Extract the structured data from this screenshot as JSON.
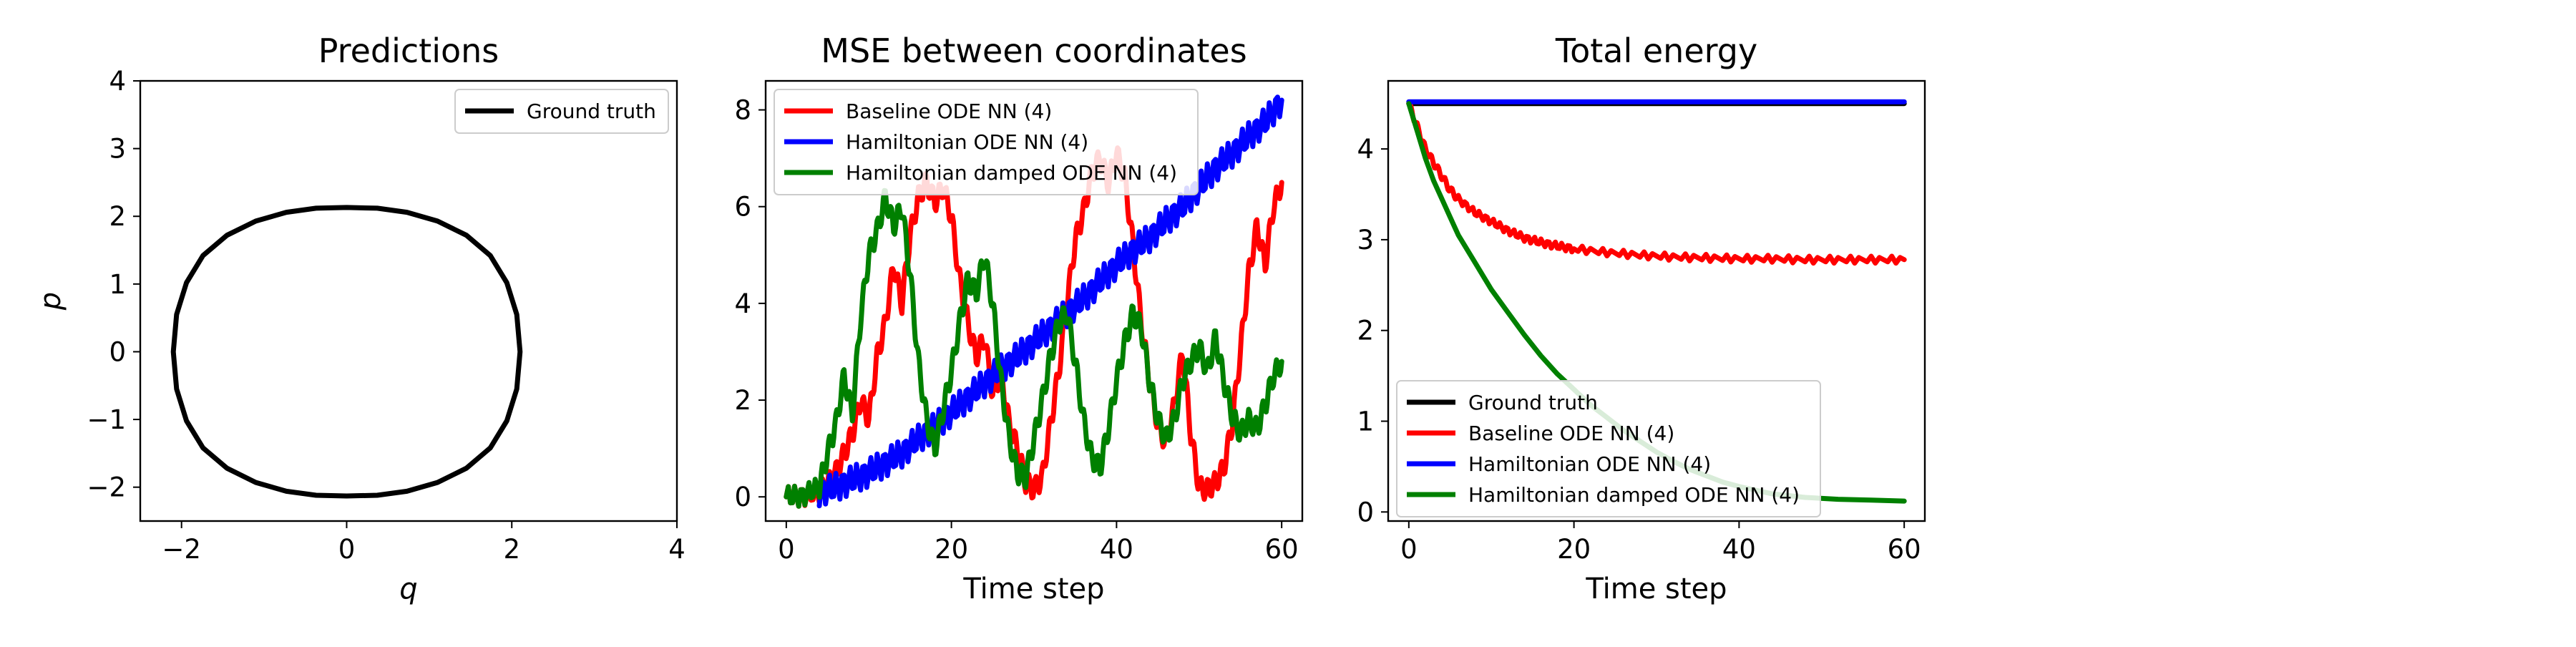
{
  "chart_data": [
    {
      "type": "line",
      "title": "Predictions",
      "xlabel": "q",
      "ylabel": "p",
      "xlim": [
        -2.5,
        4
      ],
      "ylim": [
        -2.5,
        4
      ],
      "xticks": [
        -2,
        0,
        2,
        4
      ],
      "yticks": [
        -2,
        -1,
        0,
        1,
        2,
        3,
        4
      ],
      "xtick_labels": [
        "−2",
        "0",
        "2",
        "4"
      ],
      "ytick_labels": [
        "−2",
        "−1",
        "0",
        "1",
        "2",
        "3",
        "4"
      ],
      "legend": "top-right",
      "grid": false,
      "series": [
        {
          "name": "Ground truth",
          "color": "#000000",
          "x": [
            2.1,
            2.06,
            1.94,
            1.74,
            1.45,
            1.1,
            0.73,
            0.37,
            0.0,
            -0.37,
            -0.73,
            -1.1,
            -1.45,
            -1.74,
            -1.94,
            -2.06,
            -2.1,
            -2.06,
            -1.94,
            -1.74,
            -1.45,
            -1.1,
            -0.73,
            -0.37,
            0.0,
            0.37,
            0.73,
            1.1,
            1.45,
            1.74,
            1.94,
            2.06,
            2.1
          ],
          "y": [
            0.0,
            0.55,
            1.02,
            1.42,
            1.72,
            1.93,
            2.06,
            2.12,
            2.13,
            2.12,
            2.06,
            1.93,
            1.72,
            1.42,
            1.02,
            0.55,
            0.0,
            -0.55,
            -1.02,
            -1.42,
            -1.72,
            -1.93,
            -2.06,
            -2.12,
            -2.13,
            -2.12,
            -2.06,
            -1.93,
            -1.72,
            -1.42,
            -1.02,
            -0.55,
            0.0
          ]
        }
      ]
    },
    {
      "type": "line",
      "title": "MSE between coordinates",
      "xlabel": "Time step",
      "ylabel": "",
      "xlim": [
        -2.5,
        62.5
      ],
      "ylim": [
        -0.5,
        8.6
      ],
      "xticks": [
        0,
        20,
        40,
        60
      ],
      "yticks": [
        0,
        2,
        4,
        6,
        8
      ],
      "xtick_labels": [
        "0",
        "20",
        "40",
        "60"
      ],
      "ytick_labels": [
        "0",
        "2",
        "4",
        "6",
        "8"
      ],
      "legend": "top-left",
      "grid": false,
      "series": [
        {
          "name": "Baseline ODE NN (4)",
          "color": "#ff0000",
          "x": [
            0,
            2,
            4,
            5,
            6,
            7,
            8,
            9,
            10,
            11,
            12,
            13,
            14,
            15,
            16,
            17,
            18,
            19,
            20,
            21,
            22,
            23,
            24,
            25,
            26,
            27,
            28,
            29,
            30,
            31,
            32,
            33,
            34,
            35,
            36,
            37,
            38,
            39,
            40,
            41,
            42,
            43,
            44,
            45,
            46,
            47,
            48,
            49,
            50,
            51,
            52,
            53,
            54,
            55,
            56,
            57,
            58,
            59,
            60
          ],
          "y": [
            0,
            0.02,
            0.1,
            0.25,
            0.5,
            0.9,
            1.3,
            2.0,
            1.6,
            2.9,
            3.6,
            4.8,
            4.0,
            5.4,
            6.2,
            6.5,
            6.1,
            6.4,
            5.8,
            4.5,
            3.6,
            2.9,
            3.3,
            2.1,
            2.6,
            1.5,
            1.0,
            0.3,
            0.15,
            0.4,
            1.5,
            2.6,
            4.0,
            5.3,
            5.9,
            6.7,
            7.0,
            6.5,
            7.1,
            6.6,
            5.2,
            3.6,
            2.4,
            1.5,
            1.1,
            1.9,
            3.0,
            1.3,
            0.2,
            0.15,
            0.3,
            0.6,
            1.5,
            3.0,
            4.6,
            5.6,
            4.8,
            6.0,
            6.5
          ]
        },
        {
          "name": "Hamiltonian ODE NN (4)",
          "color": "#0000ff",
          "x": [
            4,
            6,
            8,
            10,
            12,
            14,
            16,
            18,
            20,
            22,
            24,
            26,
            28,
            30,
            32,
            34,
            36,
            38,
            40,
            42,
            44,
            46,
            48,
            50,
            52,
            54,
            56,
            58,
            60
          ],
          "y": [
            0.1,
            0.2,
            0.35,
            0.5,
            0.7,
            0.9,
            1.2,
            1.45,
            1.75,
            2.05,
            2.35,
            2.65,
            2.9,
            3.2,
            3.5,
            3.8,
            4.1,
            4.45,
            4.8,
            5.1,
            5.35,
            5.7,
            6.0,
            6.4,
            6.8,
            7.1,
            7.45,
            7.75,
            8.2
          ]
        },
        {
          "name": "Hamiltonian damped ODE NN (4)",
          "color": "#008000",
          "x": [
            0,
            2,
            4,
            5,
            6,
            7,
            8,
            9,
            10,
            11,
            12,
            13,
            14,
            15,
            16,
            17,
            18,
            19,
            20,
            21,
            22,
            23,
            24,
            25,
            26,
            27,
            28,
            29,
            30,
            31,
            32,
            33,
            34,
            35,
            36,
            37,
            38,
            39,
            40,
            41,
            42,
            43,
            44,
            45,
            46,
            47,
            48,
            49,
            50,
            51,
            52,
            53,
            54,
            55,
            56,
            57,
            58,
            59,
            60
          ],
          "y": [
            0,
            0.02,
            0.2,
            0.9,
            1.5,
            2.5,
            1.7,
            3.7,
            5.0,
            5.5,
            6.2,
            5.6,
            6.0,
            4.6,
            2.8,
            1.6,
            1.0,
            1.8,
            2.6,
            3.6,
            4.5,
            4.2,
            5.0,
            4.0,
            2.4,
            1.2,
            0.5,
            0.4,
            1.2,
            2.0,
            2.9,
            3.6,
            3.8,
            2.8,
            1.6,
            0.8,
            0.6,
            1.4,
            2.4,
            3.2,
            3.8,
            3.5,
            2.4,
            1.6,
            1.2,
            1.6,
            2.4,
            2.8,
            3.1,
            2.6,
            3.3,
            2.4,
            1.7,
            1.3,
            1.6,
            1.4,
            1.9,
            2.5,
            2.8
          ]
        }
      ]
    },
    {
      "type": "line",
      "title": "Total energy",
      "xlabel": "Time step",
      "ylabel": "",
      "xlim": [
        -2.5,
        62.5
      ],
      "ylim": [
        -0.1,
        4.75
      ],
      "xticks": [
        0,
        20,
        40,
        60
      ],
      "yticks": [
        0,
        1,
        2,
        3,
        4
      ],
      "xtick_labels": [
        "0",
        "20",
        "40",
        "60"
      ],
      "ytick_labels": [
        "0",
        "1",
        "2",
        "3",
        "4"
      ],
      "legend": "bottom-left",
      "grid": false,
      "series": [
        {
          "name": "Ground truth",
          "color": "#000000",
          "x": [
            0,
            60
          ],
          "y": [
            4.5,
            4.5
          ]
        },
        {
          "name": "Baseline ODE NN (4)",
          "color": "#ff0000",
          "x": [
            0,
            1,
            2,
            3,
            4,
            5,
            6,
            8,
            10,
            12,
            14,
            16,
            18,
            20,
            24,
            28,
            32,
            36,
            40,
            44,
            48,
            52,
            56,
            60
          ],
          "y": [
            4.5,
            4.25,
            4.0,
            3.85,
            3.7,
            3.55,
            3.45,
            3.3,
            3.2,
            3.1,
            3.02,
            2.97,
            2.93,
            2.9,
            2.86,
            2.83,
            2.81,
            2.8,
            2.79,
            2.79,
            2.78,
            2.78,
            2.78,
            2.78
          ]
        },
        {
          "name": "Hamiltonian ODE NN (4)",
          "color": "#0000ff",
          "x": [
            0,
            60
          ],
          "y": [
            4.52,
            4.52
          ]
        },
        {
          "name": "Hamiltonian damped ODE NN (4)",
          "color": "#008000",
          "x": [
            0,
            1,
            2,
            3,
            4,
            5,
            6,
            8,
            10,
            12,
            14,
            16,
            18,
            20,
            22,
            24,
            26,
            28,
            30,
            32,
            34,
            36,
            38,
            40,
            44,
            48,
            52,
            56,
            60
          ],
          "y": [
            4.5,
            4.2,
            3.9,
            3.65,
            3.45,
            3.25,
            3.05,
            2.75,
            2.45,
            2.2,
            1.95,
            1.72,
            1.52,
            1.35,
            1.18,
            1.04,
            0.9,
            0.78,
            0.66,
            0.56,
            0.47,
            0.4,
            0.33,
            0.28,
            0.2,
            0.16,
            0.14,
            0.13,
            0.12
          ]
        }
      ]
    }
  ]
}
